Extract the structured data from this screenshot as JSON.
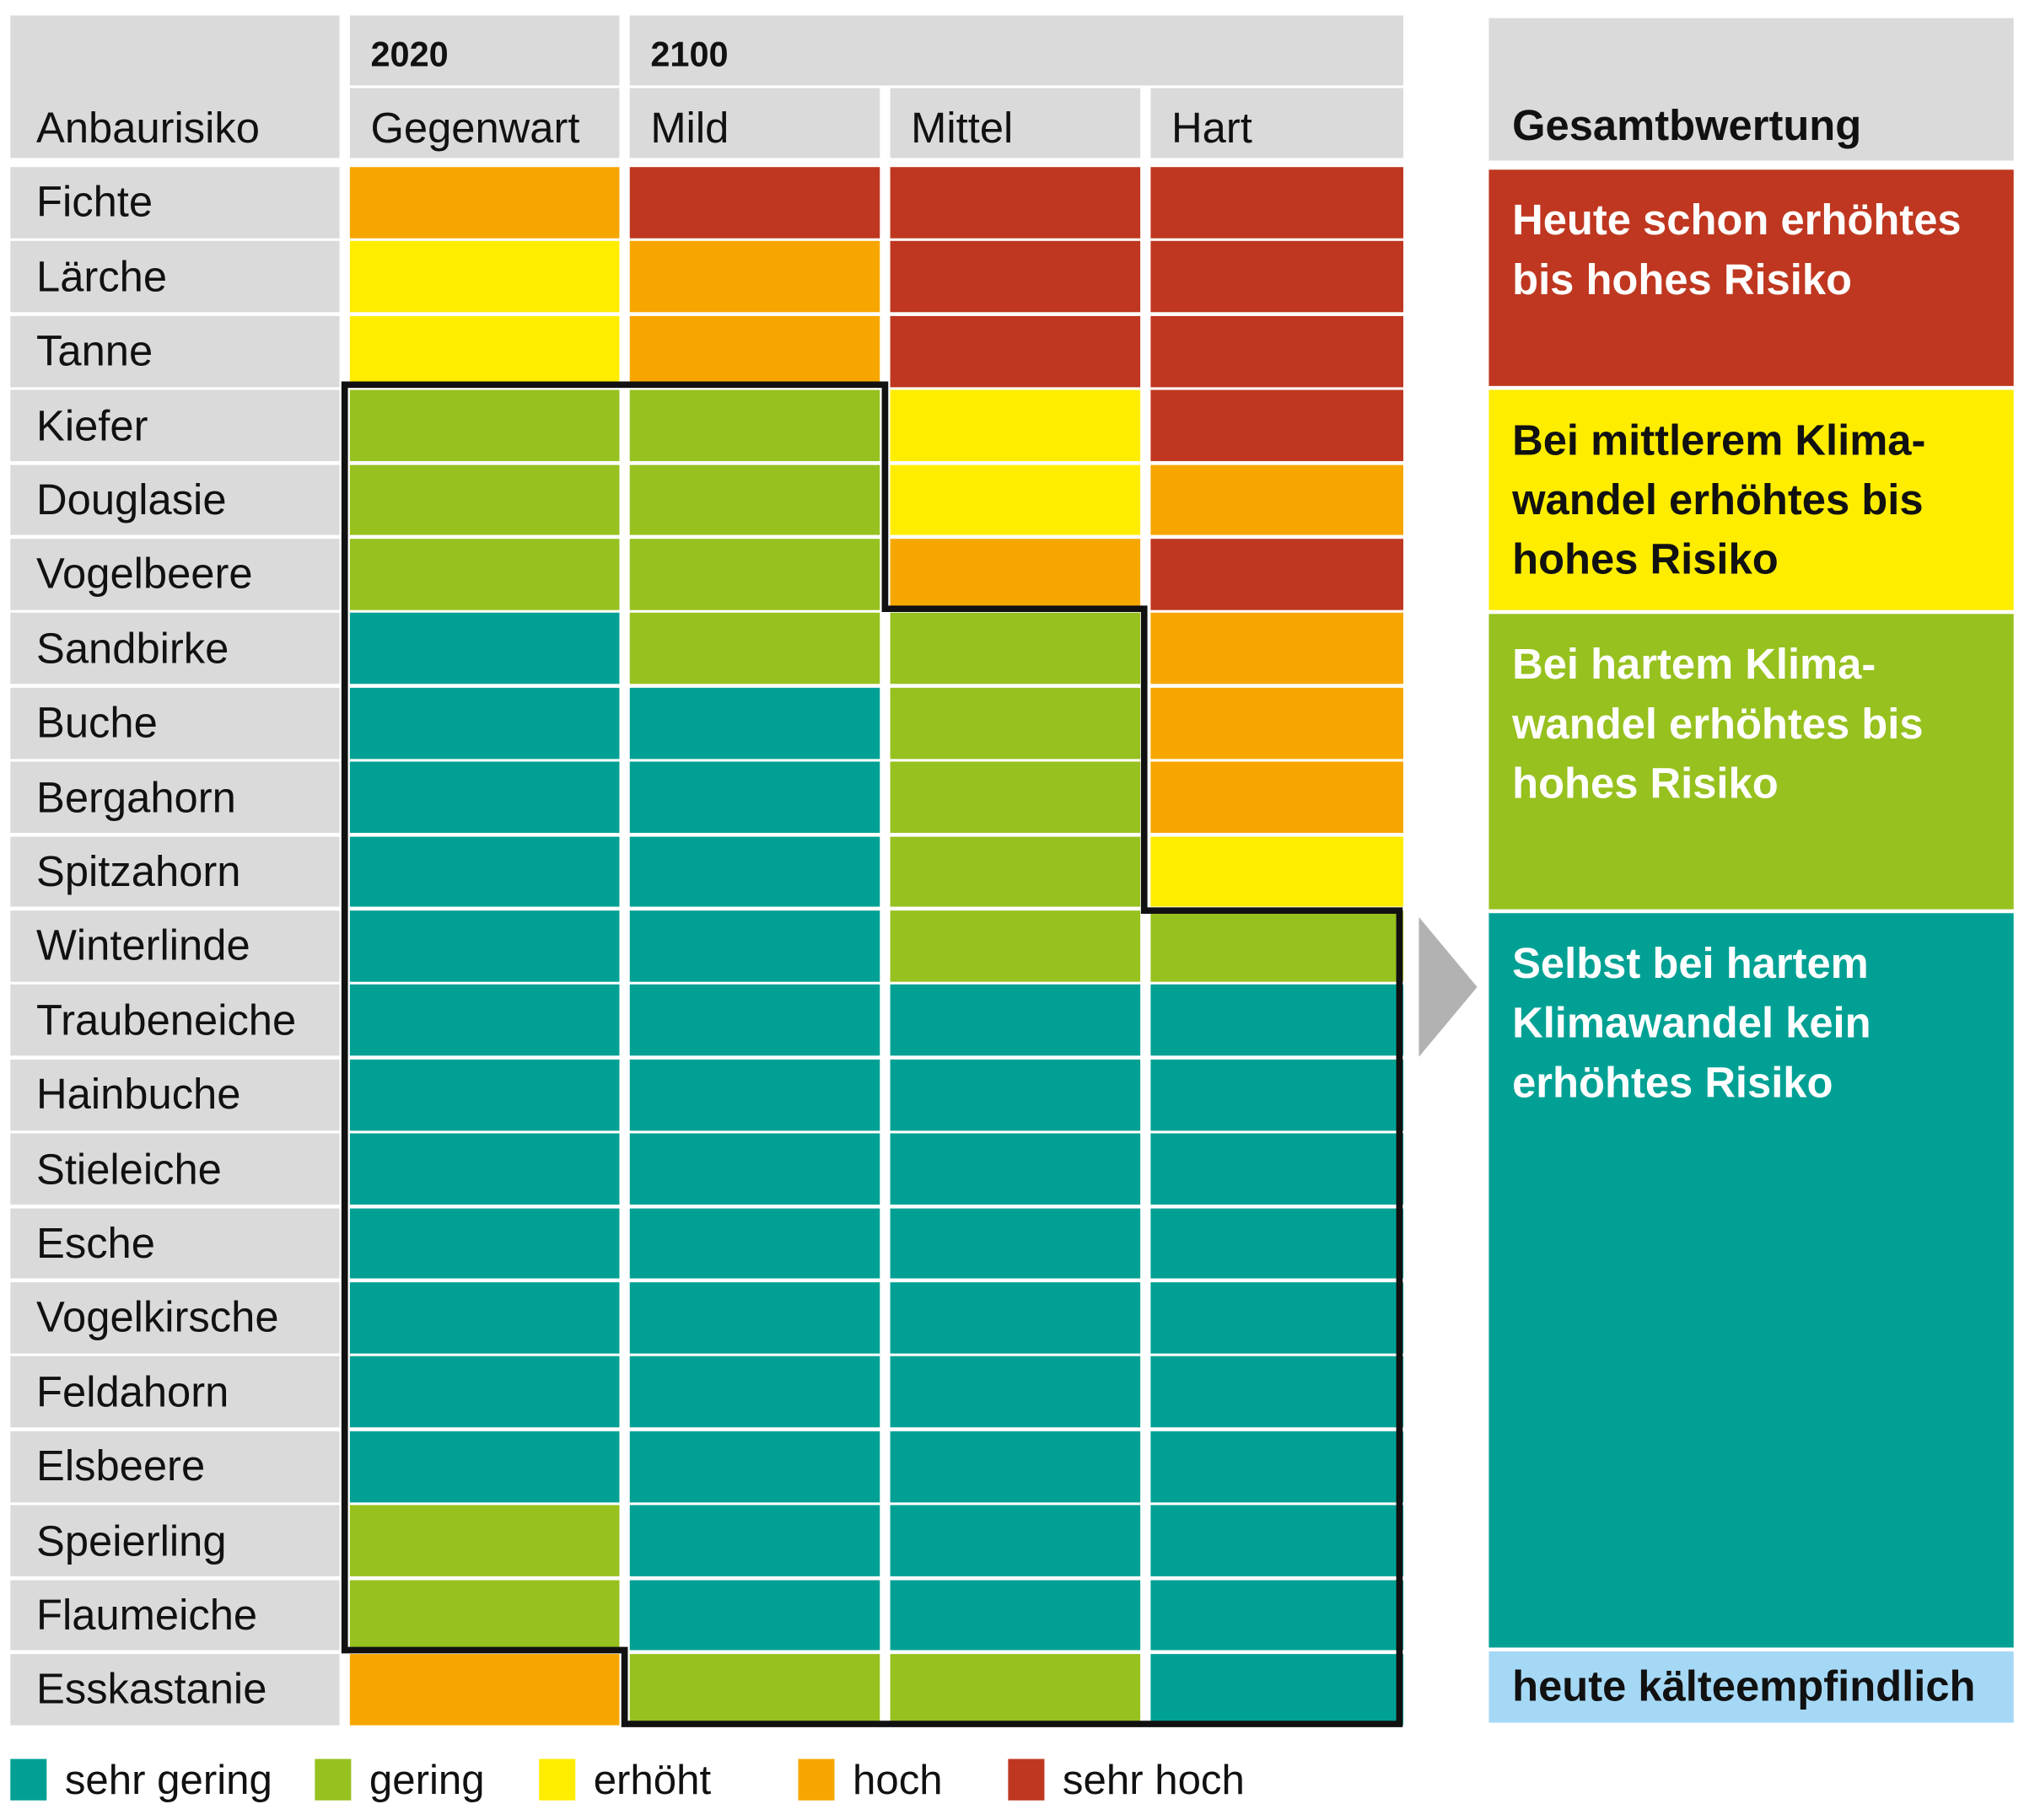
{
  "chart_data": {
    "type": "heatmap",
    "corner_label": "Anbaurisiko",
    "column_groups": [
      {
        "label": "2020",
        "columns": [
          "Gegenwart"
        ]
      },
      {
        "label": "2100",
        "columns": [
          "Mild",
          "Mittel",
          "Hart"
        ]
      }
    ],
    "columns": [
      "Gegenwart",
      "Mild",
      "Mittel",
      "Hart"
    ],
    "rows": [
      {
        "species": "Fichte",
        "values": [
          "hoch",
          "sehr hoch",
          "sehr hoch",
          "sehr hoch"
        ]
      },
      {
        "species": "Lärche",
        "values": [
          "erhöht",
          "hoch",
          "sehr hoch",
          "sehr hoch"
        ]
      },
      {
        "species": "Tanne",
        "values": [
          "erhöht",
          "hoch",
          "sehr hoch",
          "sehr hoch"
        ]
      },
      {
        "species": "Kiefer",
        "values": [
          "gering",
          "gering",
          "erhöht",
          "sehr hoch"
        ]
      },
      {
        "species": "Douglasie",
        "values": [
          "gering",
          "gering",
          "erhöht",
          "hoch"
        ]
      },
      {
        "species": "Vogelbeere",
        "values": [
          "gering",
          "gering",
          "hoch",
          "sehr hoch"
        ]
      },
      {
        "species": "Sandbirke",
        "values": [
          "sehr gering",
          "gering",
          "gering",
          "hoch"
        ]
      },
      {
        "species": "Buche",
        "values": [
          "sehr gering",
          "sehr gering",
          "gering",
          "hoch"
        ]
      },
      {
        "species": "Bergahorn",
        "values": [
          "sehr gering",
          "sehr gering",
          "gering",
          "hoch"
        ]
      },
      {
        "species": "Spitzahorn",
        "values": [
          "sehr gering",
          "sehr gering",
          "gering",
          "erhöht"
        ]
      },
      {
        "species": "Winterlinde",
        "values": [
          "sehr gering",
          "sehr gering",
          "gering",
          "gering"
        ]
      },
      {
        "species": "Traubeneiche",
        "values": [
          "sehr gering",
          "sehr gering",
          "sehr gering",
          "sehr gering"
        ]
      },
      {
        "species": "Hainbuche",
        "values": [
          "sehr gering",
          "sehr gering",
          "sehr gering",
          "sehr gering"
        ]
      },
      {
        "species": "Stieleiche",
        "values": [
          "sehr gering",
          "sehr gering",
          "sehr gering",
          "sehr gering"
        ]
      },
      {
        "species": "Esche",
        "values": [
          "sehr gering",
          "sehr gering",
          "sehr gering",
          "sehr gering"
        ]
      },
      {
        "species": "Vogelkirsche",
        "values": [
          "sehr gering",
          "sehr gering",
          "sehr gering",
          "sehr gering"
        ]
      },
      {
        "species": "Feldahorn",
        "values": [
          "sehr gering",
          "sehr gering",
          "sehr gering",
          "sehr gering"
        ]
      },
      {
        "species": "Elsbeere",
        "values": [
          "sehr gering",
          "sehr gering",
          "sehr gering",
          "sehr gering"
        ]
      },
      {
        "species": "Speierling",
        "values": [
          "gering",
          "sehr gering",
          "sehr gering",
          "sehr gering"
        ]
      },
      {
        "species": "Flaumeiche",
        "values": [
          "gering",
          "sehr gering",
          "sehr gering",
          "sehr gering"
        ]
      },
      {
        "species": "Esskastanie",
        "values": [
          "hoch",
          "gering",
          "gering",
          "sehr gering"
        ]
      }
    ],
    "legend": [
      {
        "label": "sehr gering",
        "color": "#00a194"
      },
      {
        "label": "gering",
        "color": "#97c11f"
      },
      {
        "label": "erhöht",
        "color": "#ffed00"
      },
      {
        "label": "hoch",
        "color": "#f7a600"
      },
      {
        "label": "sehr hoch",
        "color": "#bf3720"
      }
    ],
    "legend_position": "bottom",
    "assessment": {
      "title": "Gesamtbwertung",
      "groups": [
        {
          "text": "Heute schon erhöhtes bis hohes Risiko",
          "color": "#bf3720",
          "text_color": "#ffffff"
        },
        {
          "text": "Bei mittlerem Klima-wandel erhöhtes bis hohes Risiko",
          "color": "#ffed00",
          "text_color": "#111111"
        },
        {
          "text": "Bei hartem Klima-wandel erhöhtes bis hohes Risiko",
          "color": "#97c11f",
          "text_color": "#ffffff"
        },
        {
          "text": "Selbst bei hartem Klimawandel kein erhöhtes Risiko",
          "color": "#00a194",
          "text_color": "#ffffff"
        },
        {
          "text": "heute kälteempfindlich",
          "color": "#a5d8f5",
          "text_color": "#111111"
        }
      ]
    }
  }
}
